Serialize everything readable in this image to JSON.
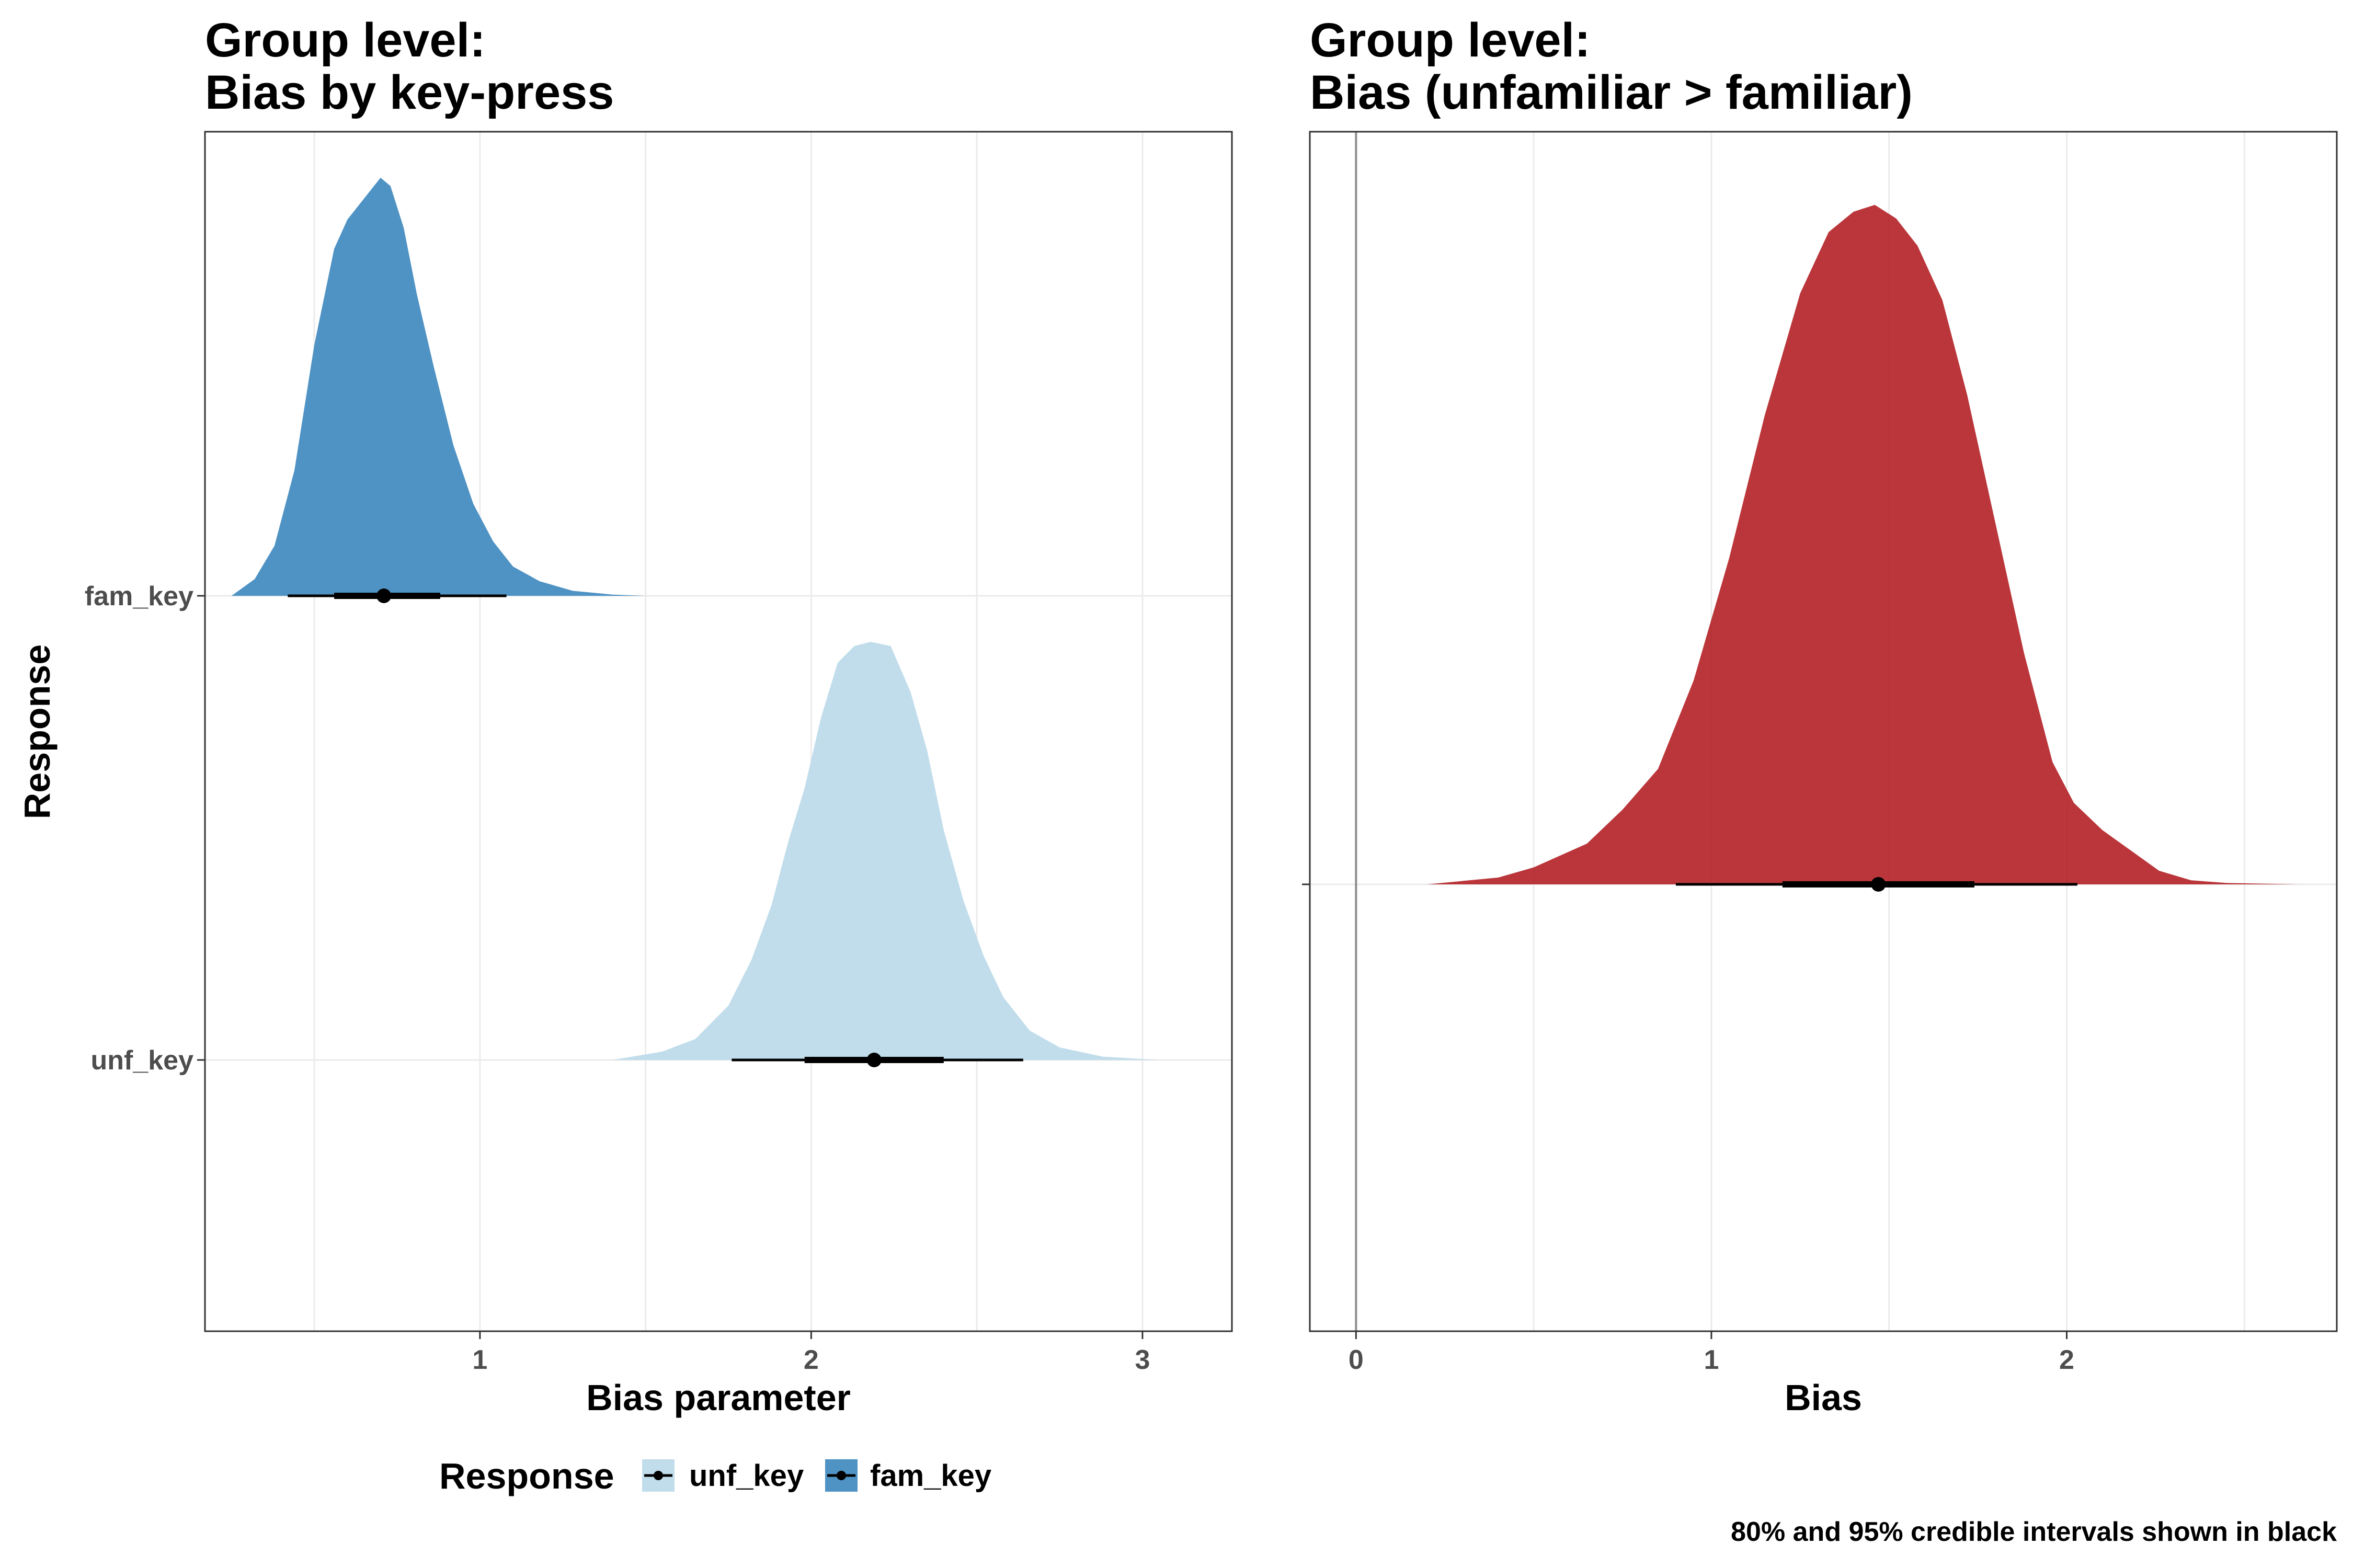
{
  "chart_data": [
    {
      "type": "area",
      "title_lines": [
        "Group level:",
        "Bias by key-press"
      ],
      "xlabel": "Bias parameter",
      "ylabel": "Response",
      "xlim": [
        0.17,
        3.27
      ],
      "x_ticks": [
        1,
        2,
        3
      ],
      "x_minor_ticks": [
        0.5,
        1.5,
        2.5
      ],
      "categories": [
        "unf_key",
        "fam_key"
      ],
      "grid": true,
      "legend": {
        "title": "Response",
        "position": "bottom",
        "entries": [
          "unf_key",
          "fam_key"
        ]
      },
      "series": [
        {
          "name": "fam_key",
          "color": "#4f92c4",
          "category": "fam_key",
          "density": {
            "x": [
              0.25,
              0.32,
              0.38,
              0.44,
              0.5,
              0.56,
              0.6,
              0.63,
              0.67,
              0.7,
              0.73,
              0.77,
              0.81,
              0.86,
              0.92,
              0.98,
              1.04,
              1.1,
              1.18,
              1.28,
              1.4,
              1.5
            ],
            "y": [
              0.0,
              0.04,
              0.12,
              0.3,
              0.6,
              0.83,
              0.9,
              0.93,
              0.97,
              1.0,
              0.98,
              0.88,
              0.72,
              0.55,
              0.36,
              0.22,
              0.13,
              0.07,
              0.035,
              0.012,
              0.003,
              0.0
            ]
          },
          "median": 0.71,
          "ci80": [
            0.56,
            0.88
          ],
          "ci95": [
            0.42,
            1.08
          ]
        },
        {
          "name": "unf_key",
          "color": "#c1ddeb",
          "category": "unf_key",
          "density": {
            "x": [
              1.4,
              1.55,
              1.65,
              1.75,
              1.82,
              1.88,
              1.93,
              1.98,
              2.03,
              2.08,
              2.13,
              2.18,
              2.24,
              2.3,
              2.35,
              2.4,
              2.46,
              2.52,
              2.58,
              2.66,
              2.75,
              2.88,
              3.05
            ],
            "y": [
              0.0,
              0.02,
              0.05,
              0.13,
              0.24,
              0.37,
              0.52,
              0.65,
              0.82,
              0.95,
              0.99,
              1.0,
              0.99,
              0.88,
              0.74,
              0.55,
              0.38,
              0.25,
              0.15,
              0.07,
              0.03,
              0.008,
              0.0
            ]
          },
          "median": 2.19,
          "ci80": [
            1.98,
            2.4
          ],
          "ci95": [
            1.76,
            2.64
          ]
        }
      ]
    },
    {
      "type": "area",
      "title_lines": [
        "Group level:",
        "Bias (unfamiliar > familiar)"
      ],
      "xlabel": "Bias",
      "ylabel": "",
      "xlim": [
        -0.13,
        2.76
      ],
      "x_ticks": [
        0,
        1,
        2
      ],
      "x_minor_ticks": [
        0.5,
        1.5,
        2.5
      ],
      "reference_line_x": 0,
      "grid": true,
      "series": [
        {
          "color": "#b22025",
          "density": {
            "x": [
              0.2,
              0.4,
              0.5,
              0.65,
              0.75,
              0.85,
              0.95,
              1.05,
              1.15,
              1.25,
              1.33,
              1.4,
              1.46,
              1.52,
              1.58,
              1.65,
              1.72,
              1.8,
              1.88,
              1.96,
              2.02,
              2.1,
              2.18,
              2.26,
              2.35,
              2.45,
              2.65
            ],
            "y": [
              0.0,
              0.01,
              0.025,
              0.06,
              0.11,
              0.17,
              0.3,
              0.48,
              0.69,
              0.87,
              0.96,
              0.99,
              1.0,
              0.98,
              0.94,
              0.86,
              0.72,
              0.53,
              0.34,
              0.18,
              0.12,
              0.08,
              0.05,
              0.02,
              0.006,
              0.002,
              0.0
            ]
          },
          "median": 1.47,
          "ci80": [
            1.2,
            1.74
          ],
          "ci95": [
            0.9,
            2.03
          ]
        }
      ]
    }
  ],
  "caption": "80% and 95% credible intervals shown in black"
}
